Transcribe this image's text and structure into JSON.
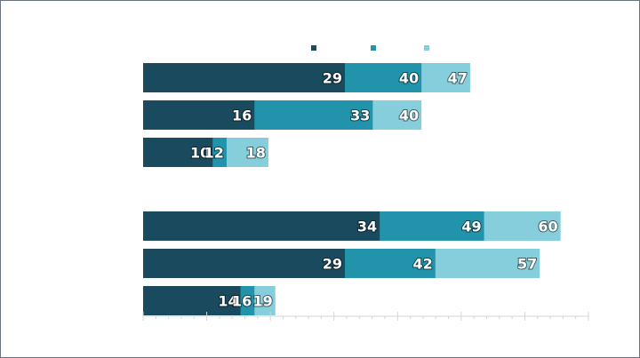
{
  "chart_data": {
    "type": "bar",
    "orientation": "horizontal",
    "layout": "overlapping",
    "title": "",
    "xlabel": "",
    "ylabel": "",
    "xlim": [
      0,
      64
    ],
    "grid": false,
    "legend": {
      "position": "top",
      "entries": [
        "",
        "",
        ""
      ]
    },
    "colors": [
      "#1a4a5e",
      "#2193ab",
      "#86cedc"
    ],
    "groups": [
      {
        "rows": [
          [
            29,
            40,
            47
          ],
          [
            16,
            33,
            40
          ],
          [
            10,
            12,
            18
          ]
        ]
      },
      {
        "rows": [
          [
            34,
            49,
            60
          ],
          [
            29,
            42,
            57
          ],
          [
            14,
            16,
            19
          ]
        ]
      }
    ]
  }
}
